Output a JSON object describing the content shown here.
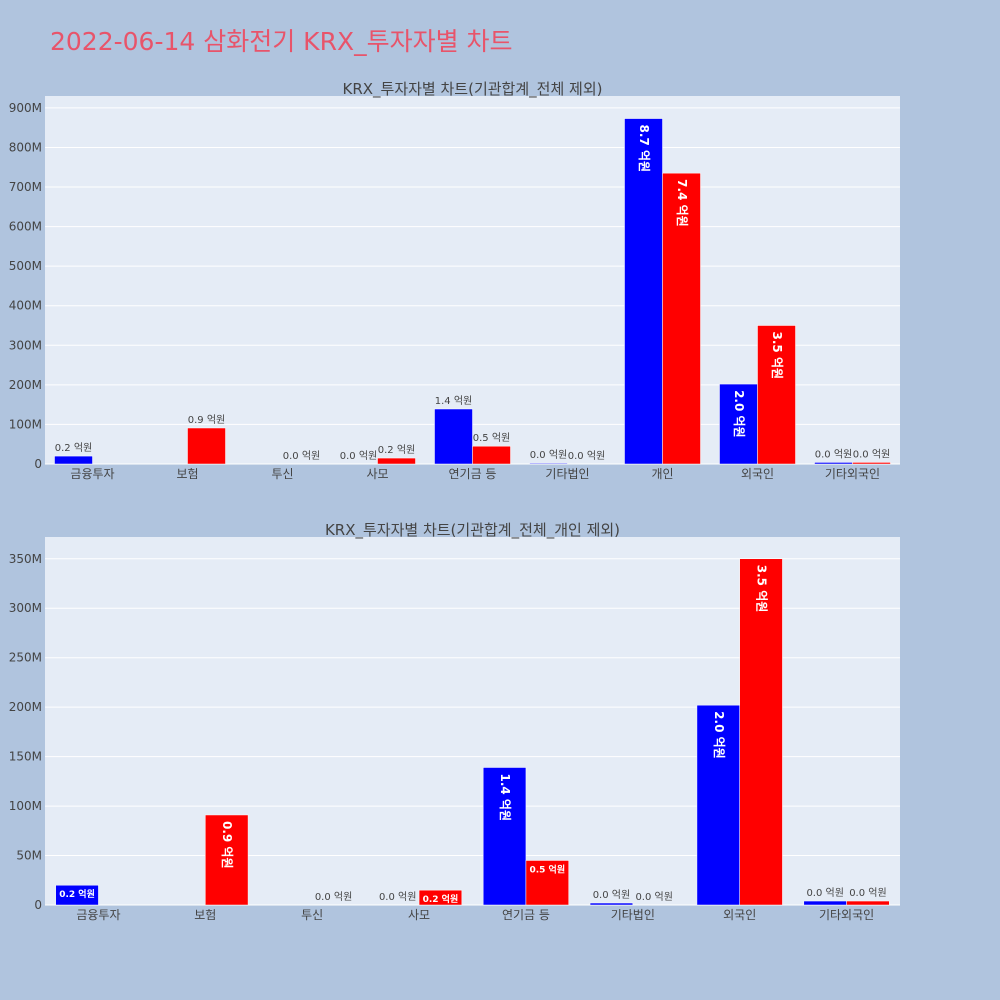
{
  "page_title": "2022-06-14 삼화전기 KRX_투자자별 차트",
  "colors": {
    "buy": "#0000ff",
    "sell": "#ff0000",
    "background": "#b0c4de",
    "plot_bg": "#e5ecf6",
    "title": "#e8546a"
  },
  "chart_data": [
    {
      "type": "bar",
      "title": "KRX_투자자별 차트(기관합계_전체 제외)",
      "categories": [
        "금융투자",
        "보험",
        "투신",
        "사모",
        "연기금 등",
        "기타법인",
        "개인",
        "외국인",
        "기타외국인"
      ],
      "ylim": [
        0,
        930000000
      ],
      "yticks": [
        0,
        100000000,
        200000000,
        300000000,
        400000000,
        500000000,
        600000000,
        700000000,
        800000000,
        900000000
      ],
      "ytick_labels": [
        "0",
        "100M",
        "200M",
        "300M",
        "400M",
        "500M",
        "600M",
        "700M",
        "800M",
        "900M"
      ],
      "series": [
        {
          "color": "#0000ff",
          "values": [
            20000000,
            0,
            0,
            0,
            139000000,
            2000000,
            873000000,
            202000000,
            4000000
          ],
          "labels": [
            "0.2 억원",
            "",
            "",
            "0.0 억원",
            "1.4 억원",
            "0.0 억원",
            "8.7 억원",
            "2.0 억원",
            "0.0 억원"
          ]
        },
        {
          "color": "#ff0000",
          "values": [
            0,
            91000000,
            0,
            15000000,
            45000000,
            0,
            735000000,
            350000000,
            4000000
          ],
          "labels": [
            "",
            "0.9 억원",
            "0.0 억원",
            "0.2 억원",
            "0.5 억원",
            "0.0 억원",
            "7.4 억원",
            "3.5 억원",
            "0.0 억원"
          ]
        }
      ],
      "grid": true
    },
    {
      "type": "bar",
      "title": "KRX_투자자별 차트(기관합계_전체_개인 제외)",
      "categories": [
        "금융투자",
        "보험",
        "투신",
        "사모",
        "연기금 등",
        "기타법인",
        "외국인",
        "기타외국인"
      ],
      "ylim": [
        0,
        372000000
      ],
      "yticks": [
        0,
        50000000,
        100000000,
        150000000,
        200000000,
        250000000,
        300000000,
        350000000
      ],
      "ytick_labels": [
        "0",
        "50M",
        "100M",
        "150M",
        "200M",
        "250M",
        "300M",
        "350M"
      ],
      "series": [
        {
          "color": "#0000ff",
          "values": [
            20000000,
            0,
            0,
            0,
            139000000,
            2000000,
            202000000,
            4000000
          ],
          "labels": [
            "0.2 억원",
            "",
            "",
            "0.0 억원",
            "1.4 억원",
            "0.0 억원",
            "2.0 억원",
            "0.0 억원"
          ]
        },
        {
          "color": "#ff0000",
          "values": [
            0,
            91000000,
            0,
            15000000,
            45000000,
            0,
            350000000,
            4000000
          ],
          "labels": [
            "",
            "0.9 억원",
            "0.0 억원",
            "0.2 억원",
            "0.5 억원",
            "0.0 억원",
            "3.5 억원",
            "0.0 억원"
          ]
        }
      ],
      "grid": true
    }
  ]
}
